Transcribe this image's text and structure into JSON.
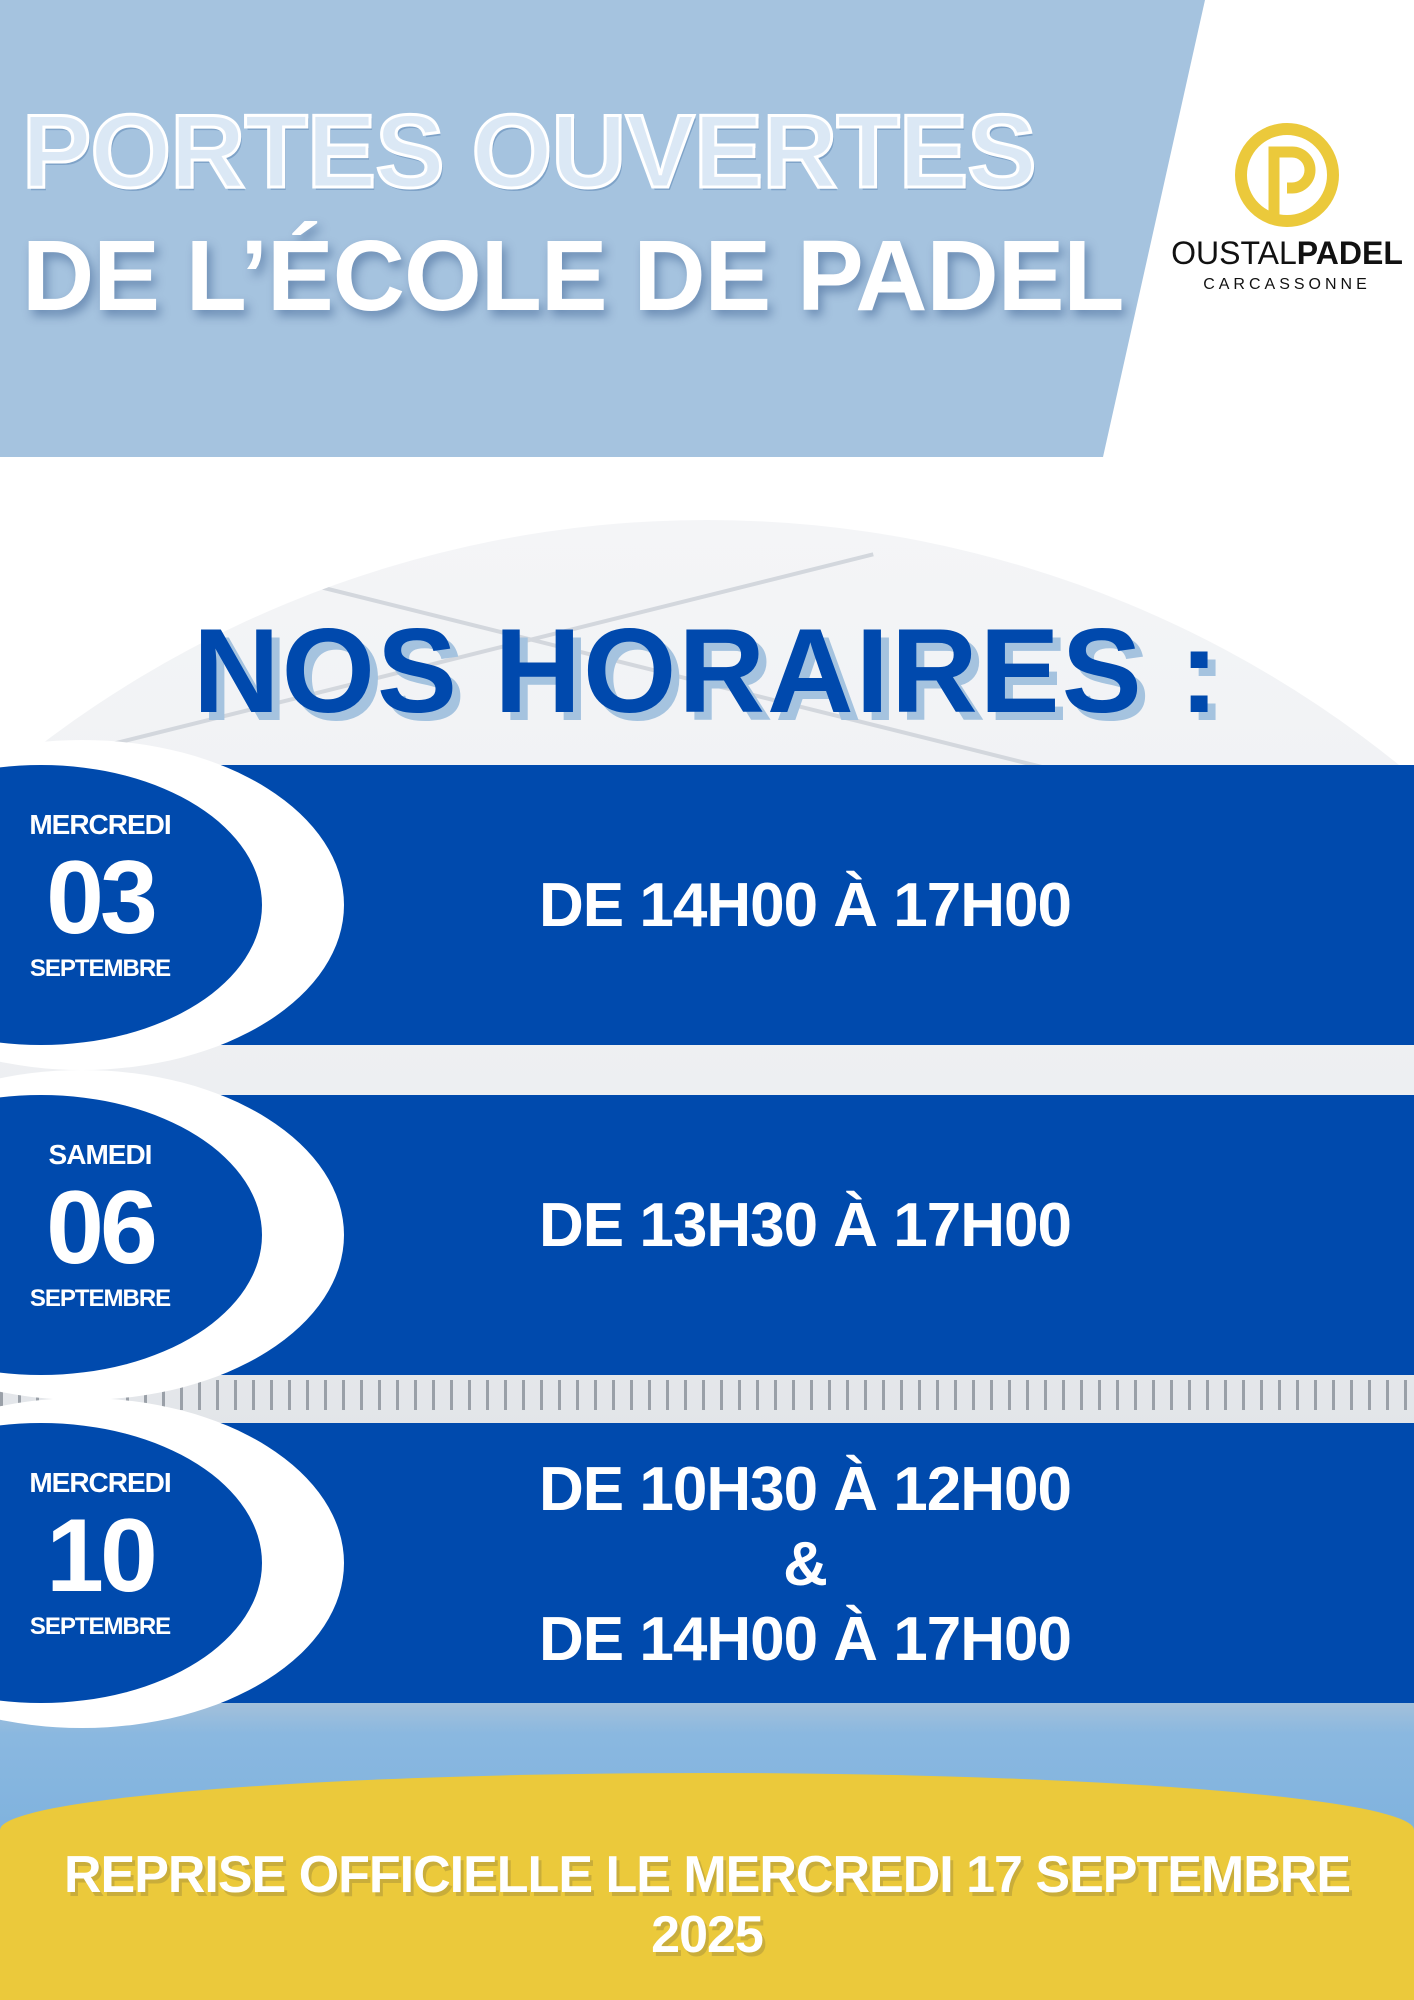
{
  "header": {
    "title_line1": "PORTES OUVERTES",
    "title_line2": "DE L’ÉCOLE DE PADEL"
  },
  "logo": {
    "brand_light": "OUSTAL",
    "brand_bold": "PADEL",
    "city": "CARCASSONNE",
    "color": "#ebc93b"
  },
  "schedule": {
    "heading": "NOS HORAIRES :",
    "items": [
      {
        "day": "MERCREDI",
        "number": "03",
        "month": "SEPTEMBRE",
        "hours": [
          "DE 14H00 À 17H00"
        ]
      },
      {
        "day": "SAMEDI",
        "number": "06",
        "month": "SEPTEMBRE",
        "hours": [
          "DE 13H30 À 17H00"
        ]
      },
      {
        "day": "MERCREDI",
        "number": "10",
        "month": "SEPTEMBRE",
        "hours": [
          "DE 10H30 À 12H00",
          "&",
          "DE 14H00 À 17H00"
        ]
      }
    ]
  },
  "footer": {
    "text": "REPRISE OFFICIELLE LE MERCREDI 17 SEPTEMBRE 2025"
  },
  "colors": {
    "primary_blue": "#004aad",
    "light_blue": "#a5c3df",
    "yellow": "#ebc93b"
  }
}
